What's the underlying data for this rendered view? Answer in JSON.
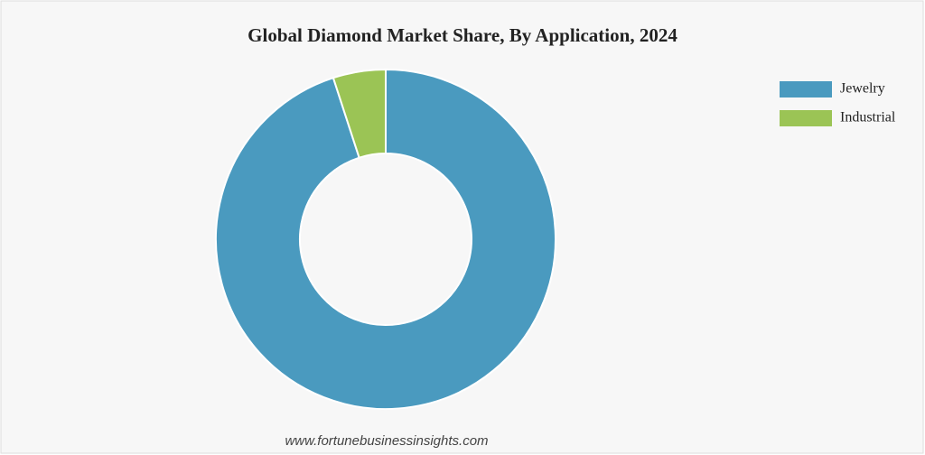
{
  "chart_data": {
    "type": "donut",
    "title": "Global Diamond Market Share, By Application, 2024",
    "categories": [
      "Jewelry",
      "Industrial"
    ],
    "values": [
      95,
      5
    ],
    "colors": [
      "#4a9abf",
      "#9bc455"
    ],
    "legend": "top-right",
    "source": "www.fortunebusinessinsights.com"
  }
}
